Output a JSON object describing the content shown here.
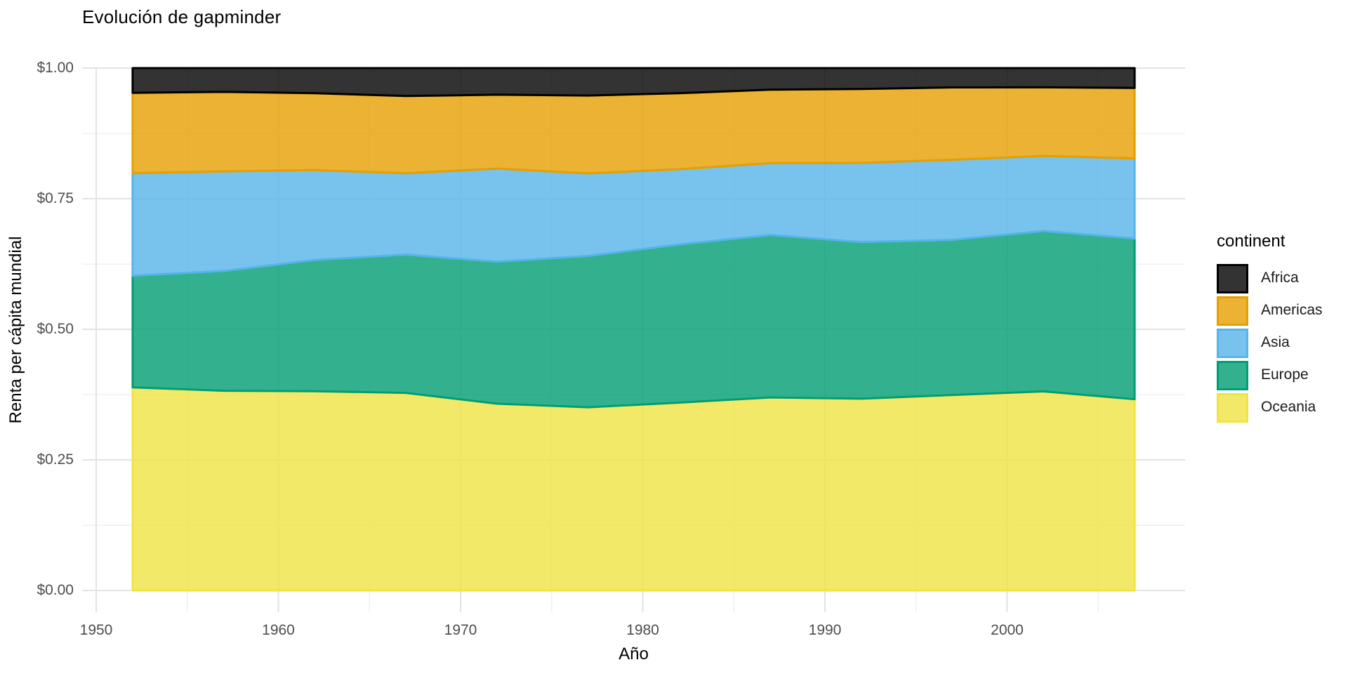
{
  "title": "Evolución de gapminder",
  "legend": {
    "title": "continent",
    "items": [
      {
        "label": "Africa",
        "color": "#000000",
        "fill_blended": "#333333"
      },
      {
        "label": "Americas",
        "color": "#E69F00",
        "fill_blended": "#EBB233"
      },
      {
        "label": "Asia",
        "color": "#56B4E9",
        "fill_blended": "#78C3ED"
      },
      {
        "label": "Europe",
        "color": "#009E73",
        "fill_blended": "#33B18F"
      },
      {
        "label": "Oceania",
        "color": "#F0E442",
        "fill_blended": "#F3E968"
      }
    ]
  },
  "colors": {
    "background": "#ffffff",
    "grid_major": "#e3e3e3",
    "grid_minor": "#f0f0f0",
    "tick_label": "#4d4d4d",
    "text": "#000000"
  },
  "chart_data": {
    "type": "area",
    "stacked": true,
    "normalized": true,
    "title": "Evolución de gapminder",
    "x_label": "Año",
    "y_label": "Renta per cápita mundial",
    "legend_title": "continent",
    "legend_position": "right",
    "grid": true,
    "x_domain": [
      1952,
      2007
    ],
    "y_domain": [
      0,
      1
    ],
    "years": [
      1952,
      1957,
      1962,
      1967,
      1972,
      1977,
      1982,
      1987,
      1992,
      1997,
      2002,
      2007
    ],
    "stack_order_bottom_to_top": [
      "Oceania",
      "Europe",
      "Asia",
      "Americas",
      "Africa"
    ],
    "series": [
      {
        "name": "Africa",
        "color": "#000000",
        "shares": [
          0.0473,
          0.0456,
          0.048,
          0.0535,
          0.051,
          0.0525,
          0.0481,
          0.0412,
          0.0401,
          0.037,
          0.0368,
          0.0379
        ]
      },
      {
        "name": "Americas",
        "color": "#E69F00",
        "shares": [
          0.154,
          0.1521,
          0.1472,
          0.1479,
          0.1414,
          0.1491,
          0.1455,
          0.1408,
          0.1413,
          0.1385,
          0.1313,
          0.1351
        ]
      },
      {
        "name": "Asia",
        "color": "#56B4E9",
        "shares": [
          0.1962,
          0.1907,
          0.1721,
          0.1558,
          0.1783,
          0.158,
          0.1441,
          0.1375,
          0.1518,
          0.1532,
          0.1439,
          0.1532
        ]
      },
      {
        "name": "Europe",
        "color": "#009E73",
        "shares": [
          0.2137,
          0.2294,
          0.2513,
          0.2647,
          0.2718,
          0.2897,
          0.3027,
          0.311,
          0.2997,
          0.2971,
          0.307,
          0.3077
        ]
      },
      {
        "name": "Oceania",
        "color": "#F0E442",
        "shares": [
          0.3888,
          0.3822,
          0.3814,
          0.3782,
          0.3576,
          0.3506,
          0.3596,
          0.3695,
          0.3671,
          0.3742,
          0.381,
          0.3661
        ]
      }
    ],
    "x_ticks": {
      "major": [
        1950,
        1960,
        1970,
        1980,
        1990,
        2000
      ],
      "major_labels": [
        "1950",
        "1960",
        "1970",
        "1980",
        "1990",
        "2000"
      ],
      "minor": [
        1955,
        1965,
        1975,
        1985,
        1995,
        2005
      ]
    },
    "y_ticks": {
      "major_values": [
        0,
        0.25,
        0.5,
        0.75,
        1
      ],
      "major_labels": [
        "$0.00",
        "$0.25",
        "$0.50",
        "$0.75",
        "$1.00"
      ],
      "minor_values": [
        0.125,
        0.375,
        0.625,
        0.875
      ]
    }
  }
}
